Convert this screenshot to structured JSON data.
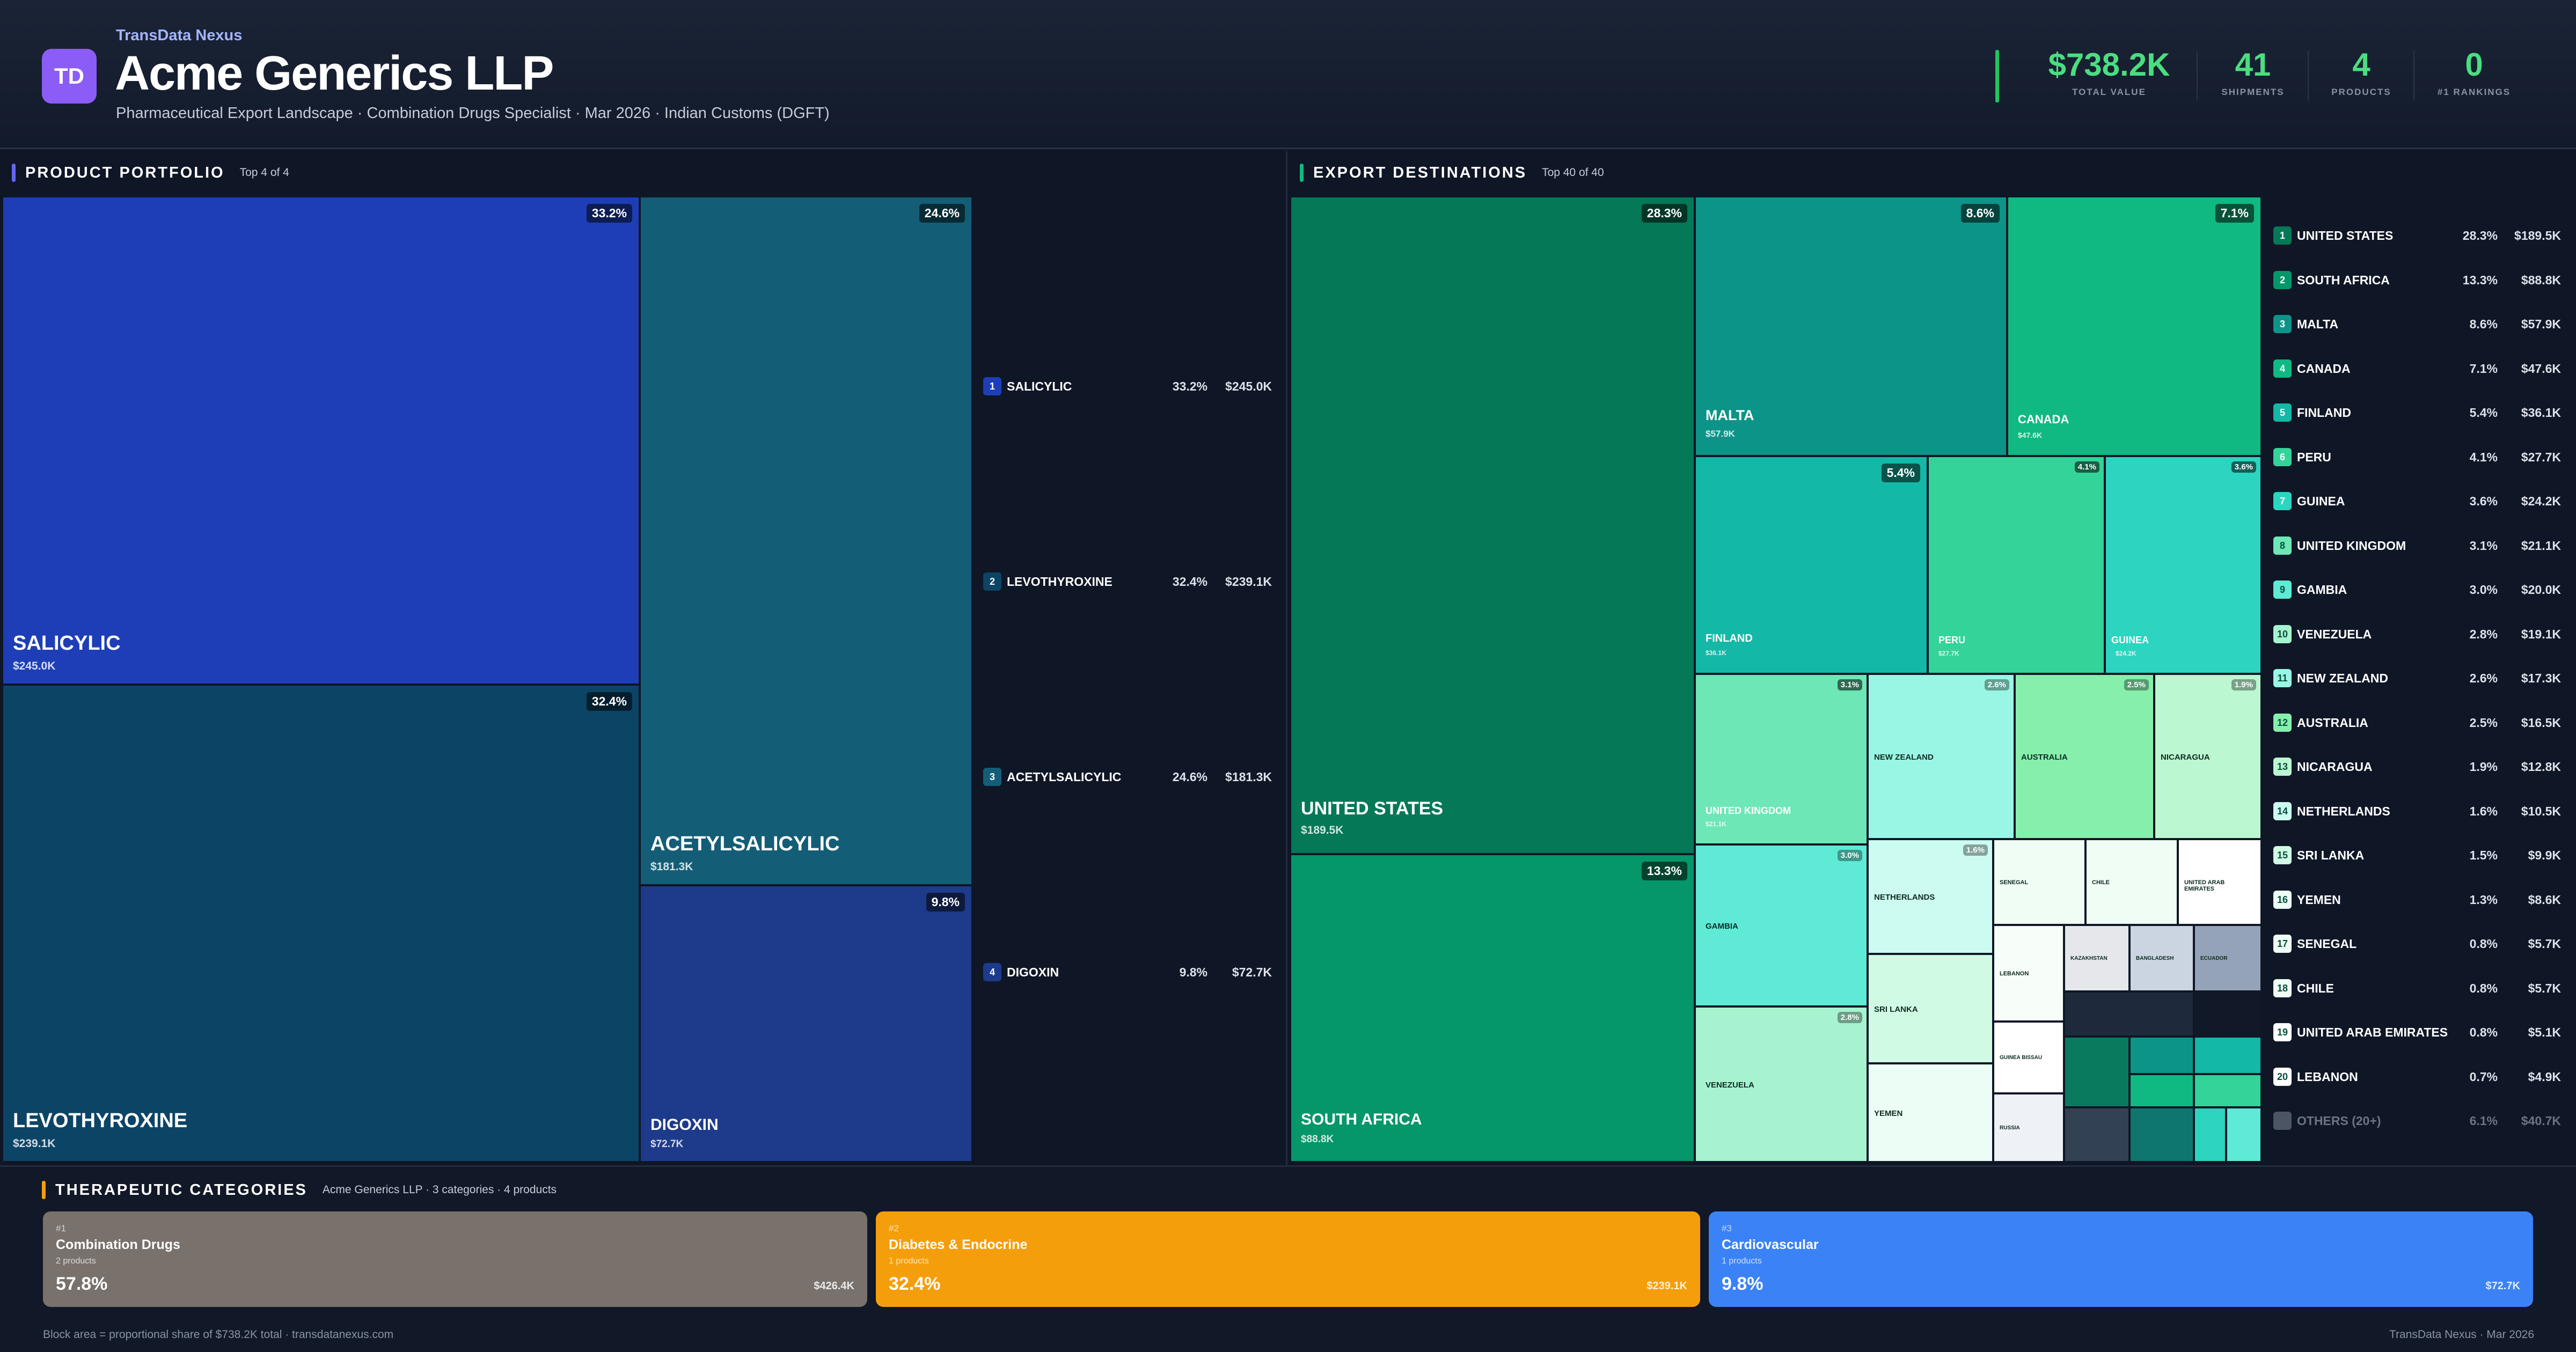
{
  "header": {
    "brand": "TransData Nexus",
    "logo": "TD",
    "company": "Acme Generics LLP",
    "subtitle": "Pharmaceutical Export Landscape · Combination Drugs Specialist · Mar 2026 · Indian Customs (DGFT)",
    "kpis": [
      {
        "value": "$738.2K",
        "label": "TOTAL VALUE"
      },
      {
        "value": "41",
        "label": "SHIPMENTS"
      },
      {
        "value": "4",
        "label": "PRODUCTS"
      },
      {
        "value": "0",
        "label": "#1 RANKINGS"
      }
    ],
    "kpi_color": "#4ade80"
  },
  "portfolio": {
    "title": "PRODUCT PORTFOLIO",
    "subtitle": "Top 4 of 4",
    "accent": "#6366f1",
    "products": [
      {
        "rank": "1",
        "name": "SALICYLIC",
        "pct": "33.2%",
        "value": "$245.0K",
        "color": "#1e3eb8"
      },
      {
        "rank": "2",
        "name": "LEVOTHYROXINE",
        "pct": "32.4%",
        "value": "$239.1K",
        "color": "#0c4466"
      },
      {
        "rank": "3",
        "name": "ACETYLSALICYLIC",
        "pct": "24.6%",
        "value": "$181.3K",
        "color": "#135e76"
      },
      {
        "rank": "4",
        "name": "DIGOXIN",
        "pct": "9.8%",
        "value": "$72.7K",
        "color": "#1e3a8a"
      }
    ]
  },
  "destinations": {
    "title": "EXPORT DESTINATIONS",
    "subtitle": "Top 40 of 40",
    "accent": "#10b981",
    "tiles": [
      {
        "name": "UNITED STATES",
        "pct": "28.3%",
        "value": "$189.5K"
      },
      {
        "name": "SOUTH AFRICA",
        "pct": "13.3%",
        "value": "$88.8K"
      },
      {
        "name": "MALTA",
        "pct": "8.6%",
        "value": "$57.9K"
      },
      {
        "name": "CANADA",
        "pct": "7.1%",
        "value": "$47.6K"
      },
      {
        "name": "FINLAND",
        "pct": "5.4%",
        "value": "$36.1K"
      },
      {
        "name": "PERU",
        "pct": "4.1%",
        "value": "$27.7K"
      },
      {
        "name": "GUINEA",
        "pct": "3.6%",
        "value": "$24.2K"
      },
      {
        "name": "UNITED KINGDOM",
        "pct": "3.1%",
        "value": "$21.1K"
      },
      {
        "name": "NEW ZEALAND",
        "pct": "2.6%"
      },
      {
        "name": "AUSTRALIA",
        "pct": "2.5%"
      },
      {
        "name": "NICARAGUA",
        "pct": "1.9%"
      },
      {
        "name": "GAMBIA",
        "pct": "3.0%"
      },
      {
        "name": "NETHERLANDS",
        "pct": "1.6%"
      },
      {
        "name": "VENEZUELA",
        "pct": "2.8%"
      },
      {
        "name": "SRI LANKA"
      },
      {
        "name": "YEMEN"
      },
      {
        "name": "SENEGAL"
      },
      {
        "name": "CHILE"
      },
      {
        "name": "UNITED ARAB EMIRATES"
      },
      {
        "name": "LEBANON"
      },
      {
        "name": "KAZAKHSTAN"
      },
      {
        "name": "BANGLADESH"
      },
      {
        "name": "ECUADOR"
      },
      {
        "name": "GUINEA BISSAU"
      },
      {
        "name": "RUSSIA"
      }
    ],
    "list": [
      {
        "rank": "1",
        "name": "UNITED STATES",
        "pct": "28.3%",
        "value": "$189.5K",
        "color": "#047857"
      },
      {
        "rank": "2",
        "name": "SOUTH AFRICA",
        "pct": "13.3%",
        "value": "$88.8K",
        "color": "#059669"
      },
      {
        "rank": "3",
        "name": "MALTA",
        "pct": "8.6%",
        "value": "$57.9K",
        "color": "#0d9488"
      },
      {
        "rank": "4",
        "name": "CANADA",
        "pct": "7.1%",
        "value": "$47.6K",
        "color": "#10b981"
      },
      {
        "rank": "5",
        "name": "FINLAND",
        "pct": "5.4%",
        "value": "$36.1K",
        "color": "#14b8a6"
      },
      {
        "rank": "6",
        "name": "PERU",
        "pct": "4.1%",
        "value": "$27.7K",
        "color": "#34d399"
      },
      {
        "rank": "7",
        "name": "GUINEA",
        "pct": "3.6%",
        "value": "$24.2K",
        "color": "#2dd4bf"
      },
      {
        "rank": "8",
        "name": "UNITED KINGDOM",
        "pct": "3.1%",
        "value": "$21.1K",
        "color": "#6ee7b7"
      },
      {
        "rank": "9",
        "name": "GAMBIA",
        "pct": "3.0%",
        "value": "$20.0K",
        "color": "#5eead4"
      },
      {
        "rank": "10",
        "name": "VENEZUELA",
        "pct": "2.8%",
        "value": "$19.1K",
        "color": "#a7f3d0"
      },
      {
        "rank": "11",
        "name": "NEW ZEALAND",
        "pct": "2.6%",
        "value": "$17.3K",
        "color": "#99f6e4"
      },
      {
        "rank": "12",
        "name": "AUSTRALIA",
        "pct": "2.5%",
        "value": "$16.5K",
        "color": "#86efac"
      },
      {
        "rank": "13",
        "name": "NICARAGUA",
        "pct": "1.9%",
        "value": "$12.8K",
        "color": "#bbf7d0"
      },
      {
        "rank": "14",
        "name": "NETHERLANDS",
        "pct": "1.6%",
        "value": "$10.5K",
        "color": "#ccfbf1"
      },
      {
        "rank": "15",
        "name": "SRI LANKA",
        "pct": "1.5%",
        "value": "$9.9K",
        "color": "#d1fae5"
      },
      {
        "rank": "16",
        "name": "YEMEN",
        "pct": "1.3%",
        "value": "$8.6K",
        "color": "#ecfdf5"
      },
      {
        "rank": "17",
        "name": "SENEGAL",
        "pct": "0.8%",
        "value": "$5.7K",
        "color": "#f0fdf4"
      },
      {
        "rank": "18",
        "name": "CHILE",
        "pct": "0.8%",
        "value": "$5.7K",
        "color": "#f0fdf4"
      },
      {
        "rank": "19",
        "name": "UNITED ARAB EMIRATES",
        "pct": "0.8%",
        "value": "$5.1K",
        "color": "#ffffff"
      },
      {
        "rank": "20",
        "name": "LEBANON",
        "pct": "0.7%",
        "value": "$4.9K",
        "color": "#ffffff"
      }
    ],
    "others": {
      "name": "OTHERS (20+)",
      "pct": "6.1%",
      "value": "$40.7K"
    }
  },
  "categories": {
    "title": "THERAPEUTIC CATEGORIES",
    "subtitle": "Acme Generics LLP · 3 categories · 4 products",
    "accent": "#f59e0b",
    "items": [
      {
        "rank": "#1",
        "name": "Combination Drugs",
        "products": "2 products",
        "share": "57.8%",
        "value": "$426.4K",
        "color": "#78716c"
      },
      {
        "rank": "#2",
        "name": "Diabetes & Endocrine",
        "products": "1 products",
        "share": "32.4%",
        "value": "$239.1K",
        "color": "#f59e0b"
      },
      {
        "rank": "#3",
        "name": "Cardiovascular",
        "products": "1 products",
        "share": "9.8%",
        "value": "$72.7K",
        "color": "#3b82f6"
      }
    ]
  },
  "footer": {
    "left": "Block area = proportional share of $738.2K total · transdatanexus.com",
    "right": "TransData Nexus · Mar 2026"
  }
}
